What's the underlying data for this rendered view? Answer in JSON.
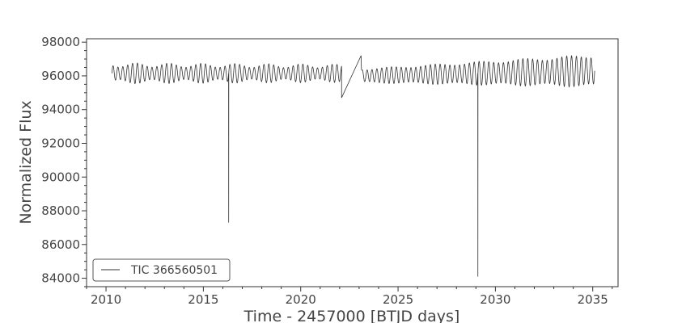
{
  "chart_data": {
    "type": "line",
    "xlabel": "Time - 2457000 [BTJD days]",
    "ylabel": "Normalized Flux",
    "xlim": [
      2009.0,
      2036.3
    ],
    "ylim": [
      83500,
      98200
    ],
    "xticks": [
      2010,
      2015,
      2020,
      2025,
      2030,
      2035
    ],
    "xtick_labels": [
      "2010",
      "2015",
      "2020",
      "2025",
      "2030",
      "2035"
    ],
    "yticks": [
      84000,
      86000,
      88000,
      90000,
      92000,
      94000,
      96000,
      98000
    ],
    "ytick_labels": [
      "84000",
      "86000",
      "88000",
      "90000",
      "92000",
      "94000",
      "96000",
      "98000"
    ],
    "legend": {
      "position": "lower-left",
      "entries": [
        "TIC 366560501"
      ]
    },
    "grid": false,
    "series": [
      {
        "name": "TIC 366560501",
        "color": "#333333",
        "segments": [
          {
            "x_start": 2010.3,
            "x_end": 2022.1,
            "baseline": 96150,
            "amplitude_start": 500,
            "amplitude_end": 430,
            "period_days": 0.25
          },
          {
            "x_start": 2023.1,
            "x_end": 2035.1,
            "baseline_start": 96000,
            "baseline_end": 96300,
            "amplitude_start": 380,
            "amplitude_end": 880,
            "period_days": 0.25
          }
        ],
        "features": [
          {
            "kind": "dip",
            "x": 2016.3,
            "y_min": 87300
          },
          {
            "kind": "dip",
            "x": 2029.1,
            "y_min": 84100
          },
          {
            "kind": "ramp",
            "x_start": 2022.1,
            "y_start": 94700,
            "x_end": 2023.1,
            "y_end": 97200
          }
        ]
      }
    ]
  }
}
